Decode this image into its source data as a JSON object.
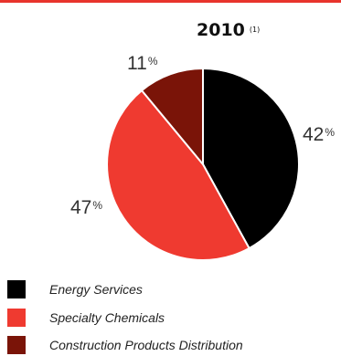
{
  "chart_data": {
    "type": "pie",
    "title": "2010",
    "title_note": "(1)",
    "slices": [
      {
        "label": "Energy Services",
        "value": 42,
        "color": "#000000"
      },
      {
        "label": "Specialty Chemicals",
        "value": 47,
        "color": "#ef3a30"
      },
      {
        "label": "Construction Products Distribution",
        "value": 11,
        "color": "#7a1408"
      }
    ],
    "value_suffix": "%"
  }
}
